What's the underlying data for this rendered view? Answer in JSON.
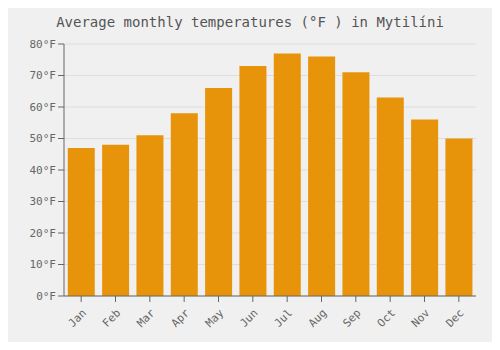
{
  "chart_data": {
    "type": "bar",
    "title": "Average monthly temperatures (°F ) in Mytilíni",
    "categories": [
      "Jan",
      "Feb",
      "Mar",
      "Apr",
      "May",
      "Jun",
      "Jul",
      "Aug",
      "Sep",
      "Oct",
      "Nov",
      "Dec"
    ],
    "values": [
      47,
      48,
      51,
      58,
      66,
      73,
      77,
      76,
      71,
      63,
      56,
      50
    ],
    "color": "#E8940A",
    "ylim": [
      0,
      80
    ],
    "yticks": [
      {
        "value": 0,
        "label": "0°F"
      },
      {
        "value": 10,
        "label": "10°F"
      },
      {
        "value": 20,
        "label": "20°F"
      },
      {
        "value": 30,
        "label": "30°F"
      },
      {
        "value": 40,
        "label": "40°F"
      },
      {
        "value": 50,
        "label": "50°F"
      },
      {
        "value": 60,
        "label": "60°F"
      },
      {
        "value": 70,
        "label": "70°F"
      },
      {
        "value": 80,
        "label": "80°F"
      }
    ],
    "grid": true
  }
}
